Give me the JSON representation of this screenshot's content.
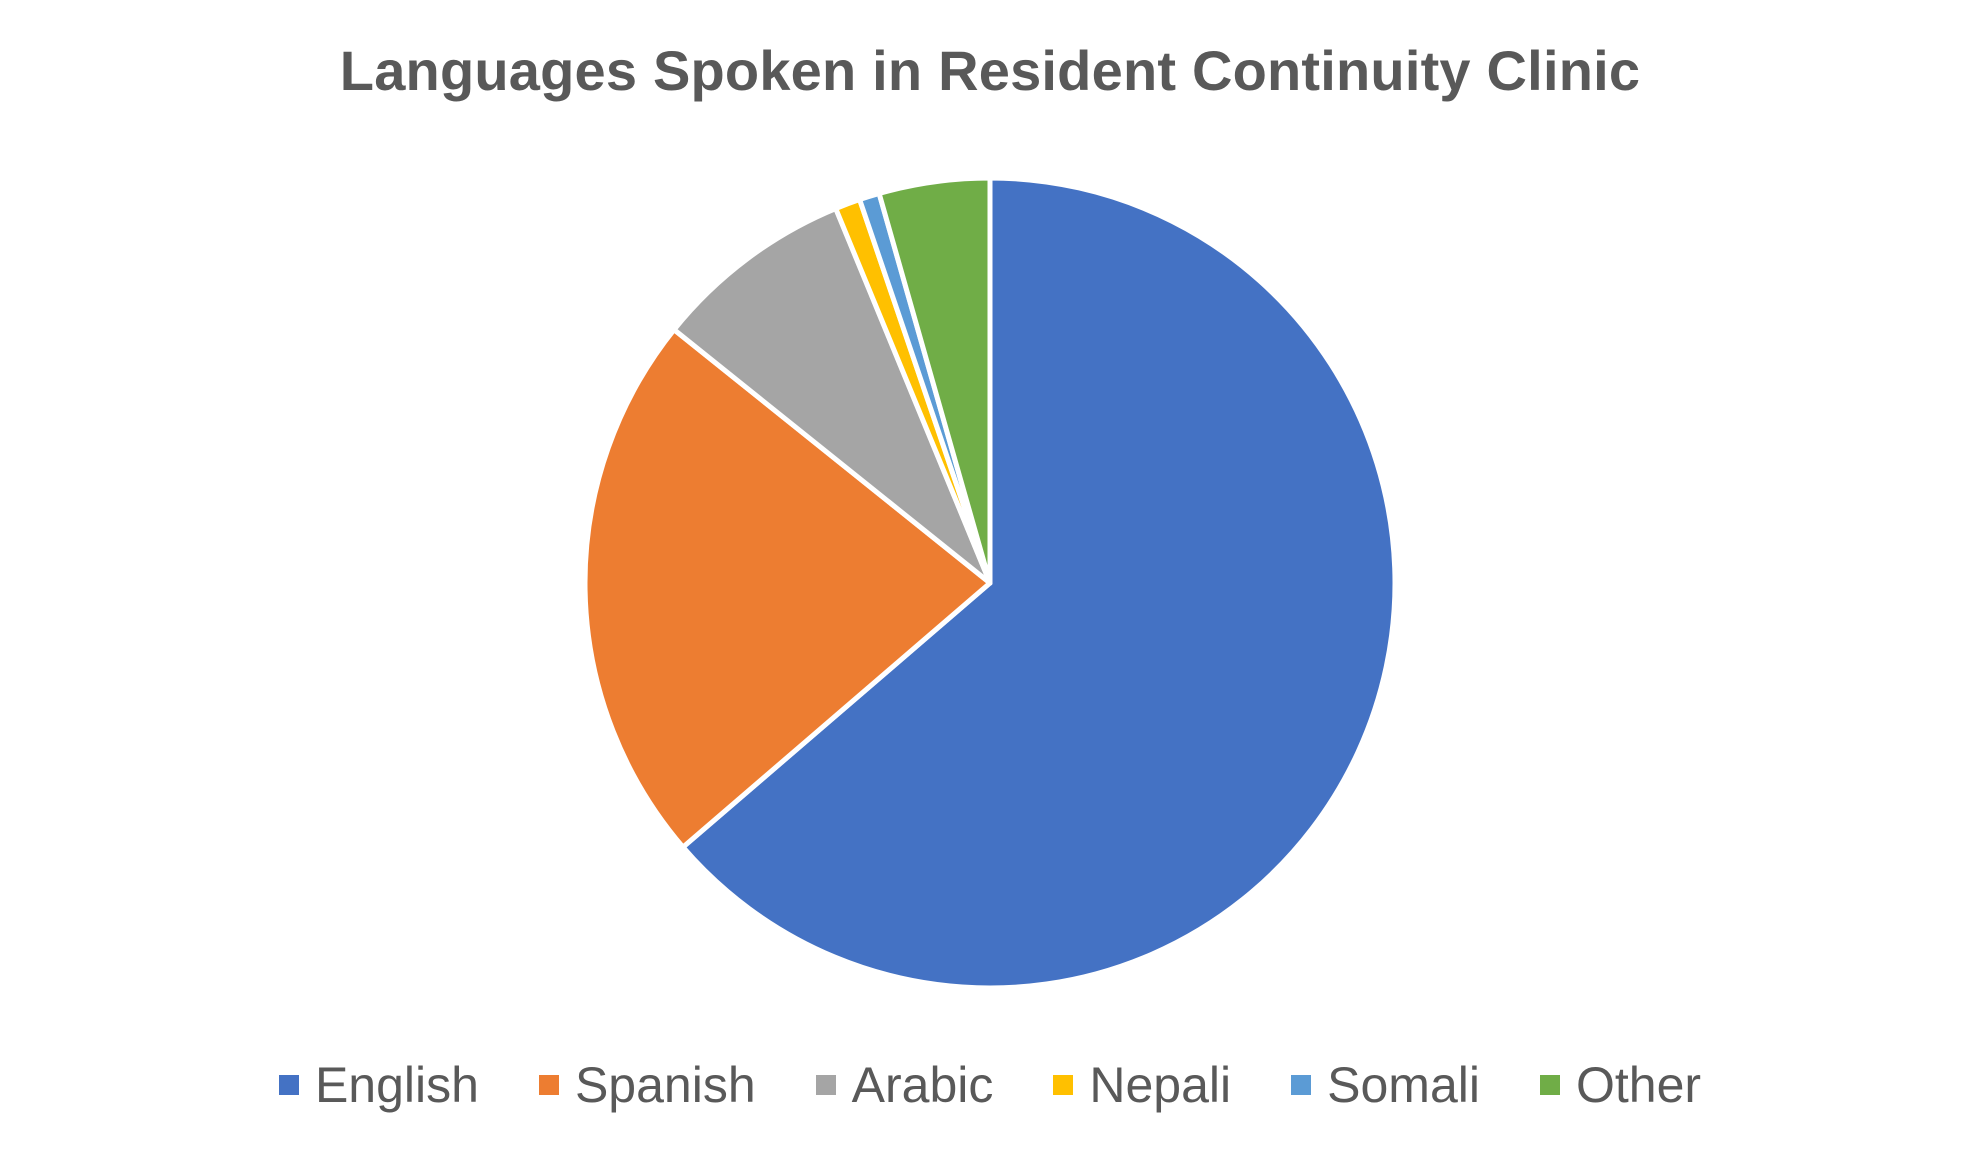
{
  "chart_data": {
    "type": "pie",
    "title": "Languages Spoken in Resident Continuity Clinic",
    "categories": [
      "English",
      "Spanish",
      "Arabic",
      "Nepali",
      "Somali",
      "Other"
    ],
    "values": [
      63.5,
      22.0,
      8.0,
      1.0,
      0.8,
      4.4
    ],
    "unit": "percent (estimated)",
    "colors": [
      "#4472C4",
      "#ED7D31",
      "#A5A5A5",
      "#FFC000",
      "#5B9BD5",
      "#70AD47"
    ],
    "start_angle": "12 o'clock",
    "direction": "clockwise",
    "legend": "bottom",
    "data_labels": false
  }
}
